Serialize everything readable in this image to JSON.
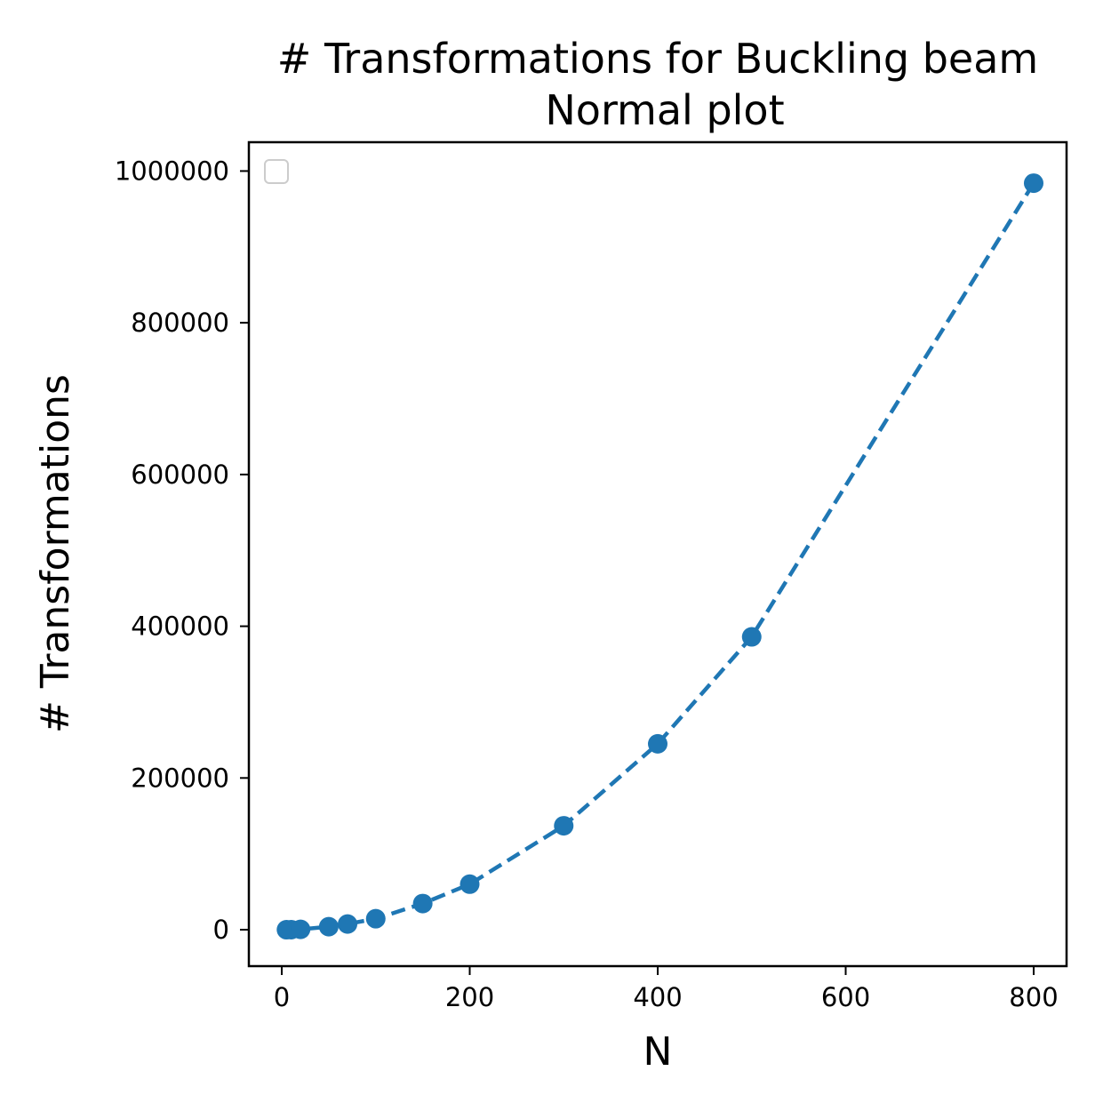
{
  "chart_data": {
    "type": "line",
    "title": "# Transformations for Buckling beam",
    "subtitle": "Normal plot",
    "xlabel": "N",
    "ylabel": "# Transformations",
    "xlim": [
      -35,
      835
    ],
    "ylim": [
      -48000,
      1038000
    ],
    "x_ticks": [
      0,
      200,
      400,
      600,
      800
    ],
    "x_tick_labels": [
      "0",
      "200",
      "400",
      "600",
      "800"
    ],
    "y_ticks": [
      0,
      200000,
      400000,
      600000,
      800000,
      1000000
    ],
    "y_tick_labels": [
      "0",
      "200000",
      "400000",
      "600000",
      "800000",
      "1000000"
    ],
    "grid": false,
    "legend": {
      "placement": "top-left",
      "entries": []
    },
    "line_style": "dashed",
    "marker": "circle",
    "color": "#1f77b4",
    "series": [
      {
        "x": [
          5,
          10,
          20,
          50,
          70,
          100,
          150,
          200,
          300,
          400,
          500,
          800
        ],
        "y": [
          0,
          100,
          500,
          4000,
          7500,
          14500,
          34500,
          60000,
          137000,
          245000,
          386000,
          984000
        ]
      }
    ]
  }
}
